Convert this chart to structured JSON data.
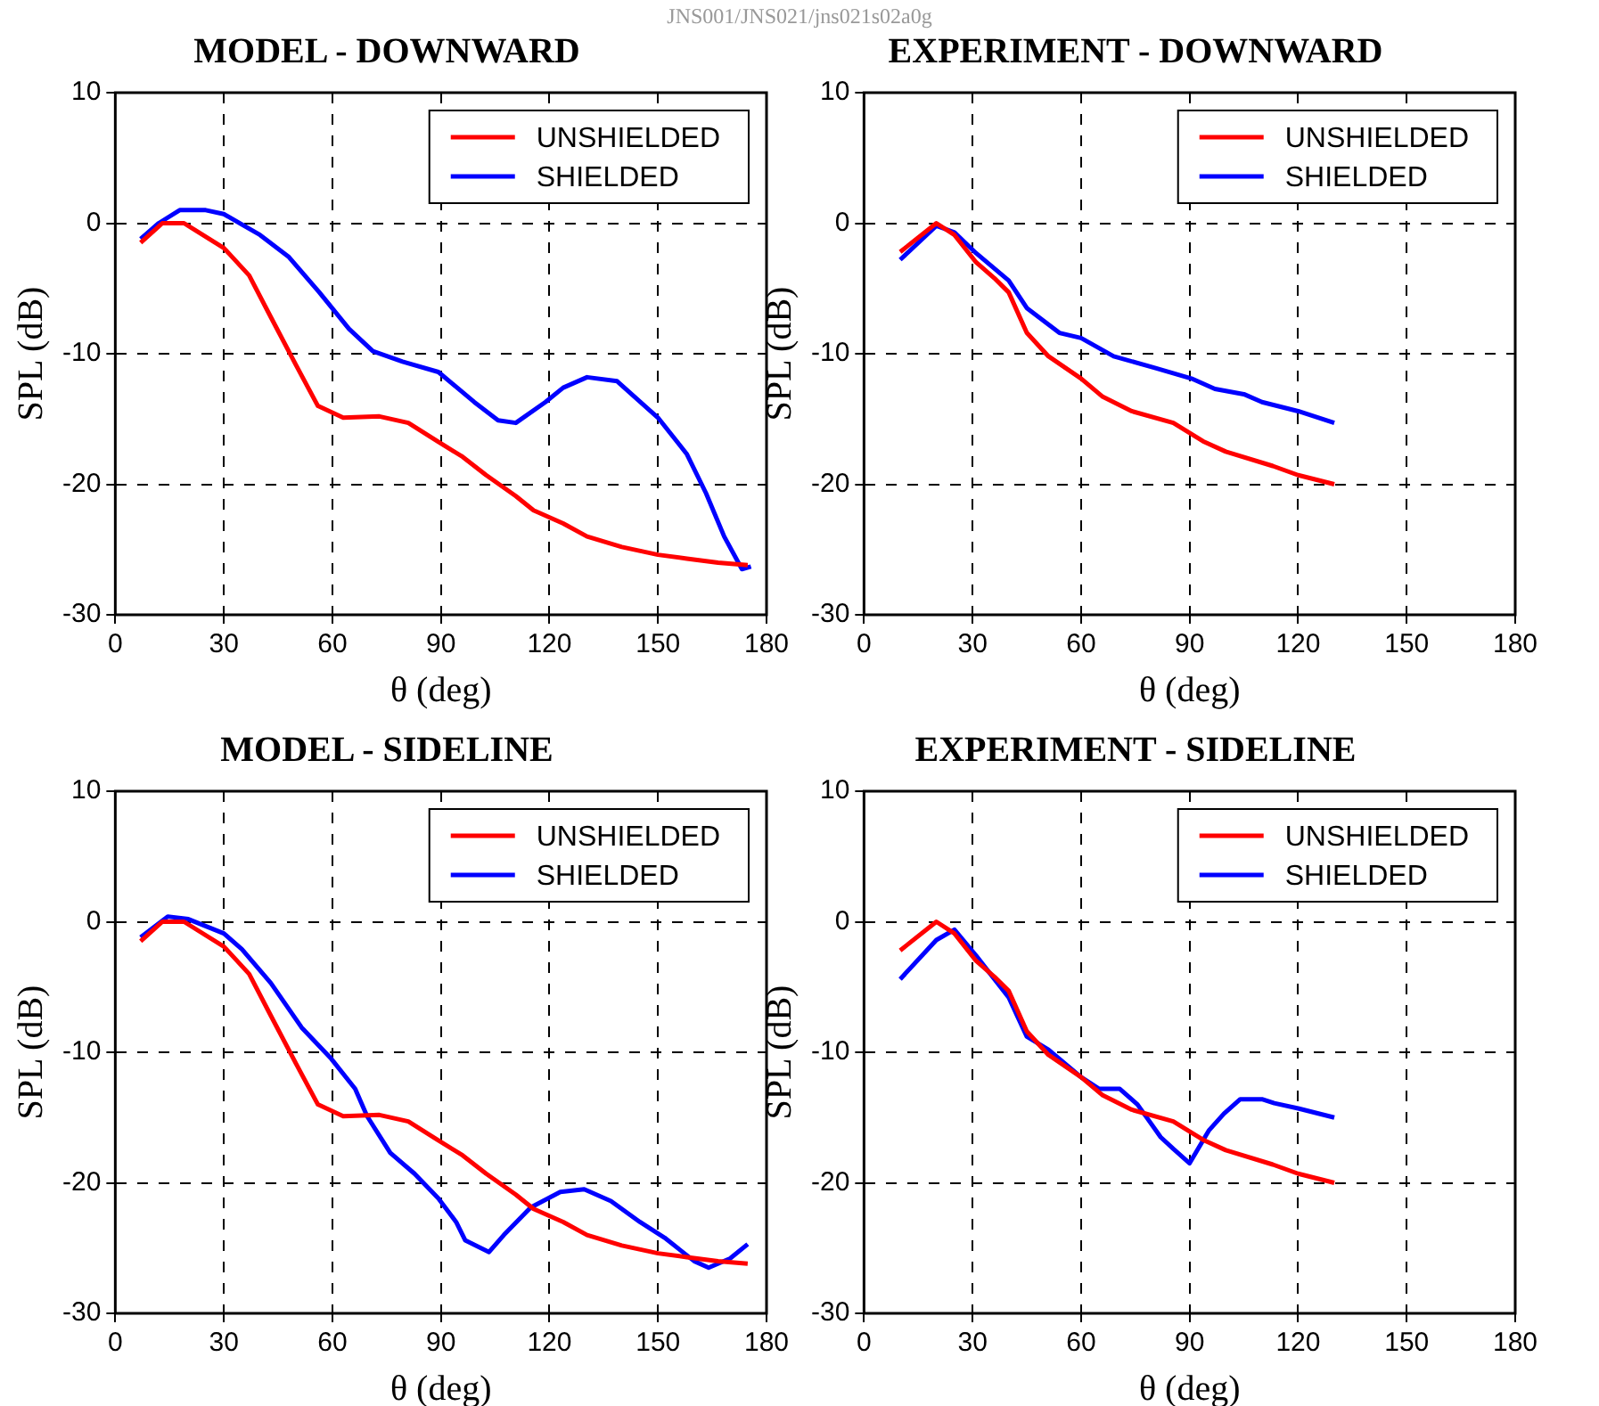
{
  "chart_data": [
    {
      "type": "line",
      "title": "MODEL - DOWNWARD",
      "xlabel": "θ (deg)",
      "ylabel": "SPL (dB)",
      "annotations": [
        "JNS001/JNS021/jns021s02a0g"
      ],
      "xlim": [
        0,
        180
      ],
      "xticks": [
        0,
        30,
        60,
        90,
        120,
        150,
        180
      ],
      "ylim": [
        -30,
        10
      ],
      "yticks": [
        -30,
        -20,
        -10,
        0,
        10
      ],
      "grid": true,
      "legend": "top right",
      "line_style": "solid",
      "marker": "none",
      "series": [
        {
          "name": "UNSHIELDED",
          "color": "#ff0000",
          "x": [
            7,
            13,
            19,
            30,
            37,
            43,
            50,
            56,
            63,
            73,
            81,
            89,
            96,
            102.5,
            110.7,
            115.6,
            123.8,
            130.4,
            140,
            150,
            158,
            166.6,
            174.8
          ],
          "values": [
            -1.5,
            0,
            0,
            -1.9,
            -4,
            -7.2,
            -10.9,
            -14,
            -14.9,
            -14.8,
            -15.3,
            -16.7,
            -17.9,
            -19.3,
            -20.9,
            -22,
            -23,
            -24,
            -24.8,
            -25.4,
            -25.7,
            -26,
            -26.2
          ]
        },
        {
          "name": "SHIELDED",
          "color": "#0000ff",
          "x": [
            7,
            12,
            17.8,
            25,
            30,
            40,
            48,
            56.4,
            64.6,
            71.2,
            79.4,
            89.3,
            99.2,
            105.8,
            110.7,
            118.9,
            123.8,
            130.4,
            138.7,
            150,
            158,
            163.3,
            168.3,
            173.2,
            175.7
          ],
          "values": [
            -1.2,
            0,
            1,
            1,
            0.7,
            -0.9,
            -2.6,
            -5.3,
            -8.1,
            -9.8,
            -10.6,
            -11.4,
            -13.7,
            -15.1,
            -15.3,
            -13.7,
            -12.6,
            -11.8,
            -12.1,
            -14.9,
            -17.7,
            -20.7,
            -24,
            -26.5,
            -26.3
          ]
        }
      ]
    },
    {
      "type": "line",
      "title": "EXPERIMENT - DOWNWARD",
      "xlabel": "θ (deg)",
      "ylabel": "SPL (dB)",
      "xlim": [
        0,
        180
      ],
      "xticks": [
        0,
        30,
        60,
        90,
        120,
        150,
        180
      ],
      "ylim": [
        -30,
        10
      ],
      "yticks": [
        -30,
        -20,
        -10,
        0,
        10
      ],
      "grid": true,
      "legend": "top right",
      "line_style": "solid",
      "marker": "none",
      "series": [
        {
          "name": "UNSHIELDED",
          "color": "#ff0000",
          "x": [
            10,
            20,
            25,
            31,
            36,
            40,
            45,
            51,
            60,
            66,
            74,
            85.5,
            93.7,
            100,
            113,
            120,
            130
          ],
          "values": [
            -2.2,
            0,
            -0.9,
            -3,
            -4.2,
            -5.3,
            -8.4,
            -10.2,
            -11.9,
            -13.3,
            -14.4,
            -15.3,
            -16.7,
            -17.5,
            -18.6,
            -19.3,
            -20
          ]
        },
        {
          "name": "SHIELDED",
          "color": "#0000ff",
          "x": [
            10,
            20,
            25,
            31,
            40,
            45,
            54,
            60,
            69,
            80.6,
            90.5,
            97,
            105,
            110,
            120,
            130
          ],
          "values": [
            -2.8,
            -0.2,
            -0.7,
            -2.3,
            -4.4,
            -6.5,
            -8.4,
            -8.8,
            -10.2,
            -11.1,
            -11.9,
            -12.7,
            -13.1,
            -13.7,
            -14.4,
            -15.3
          ]
        }
      ]
    },
    {
      "type": "line",
      "title": "MODEL - SIDELINE",
      "xlabel": "θ (deg)",
      "ylabel": "SPL (dB)",
      "xlim": [
        0,
        180
      ],
      "xticks": [
        0,
        30,
        60,
        90,
        120,
        150,
        180
      ],
      "ylim": [
        -30,
        10
      ],
      "yticks": [
        -30,
        -20,
        -10,
        0,
        10
      ],
      "grid": true,
      "legend": "top right",
      "line_style": "solid",
      "marker": "none",
      "series": [
        {
          "name": "UNSHIELDED",
          "color": "#ff0000",
          "x": [
            7,
            13,
            19,
            30,
            37,
            43,
            50,
            56,
            63,
            73,
            81,
            89,
            96,
            102.5,
            110.7,
            115.6,
            123.8,
            130.4,
            140,
            150,
            158,
            166.6,
            174.8
          ],
          "values": [
            -1.5,
            0,
            0,
            -1.9,
            -4,
            -7.2,
            -10.9,
            -14,
            -14.9,
            -14.8,
            -15.3,
            -16.7,
            -17.9,
            -19.3,
            -20.9,
            -22,
            -23,
            -24,
            -24.8,
            -25.4,
            -25.7,
            -26,
            -26.2
          ]
        },
        {
          "name": "SHIELDED",
          "color": "#0000ff",
          "x": [
            7,
            14.5,
            20.2,
            30,
            35,
            43,
            51.5,
            59.7,
            66.3,
            69.6,
            76,
            82.7,
            89.3,
            94.2,
            96.7,
            103.3,
            107.4,
            114.8,
            123,
            129.6,
            137,
            145,
            151.8,
            160,
            164,
            169.9,
            174.8
          ],
          "values": [
            -1.2,
            0.4,
            0.2,
            -0.9,
            -2.1,
            -4.7,
            -8.1,
            -10.5,
            -12.8,
            -14.9,
            -17.7,
            -19.3,
            -21.2,
            -23,
            -24.4,
            -25.3,
            -24,
            -21.9,
            -20.7,
            -20.5,
            -21.4,
            -23,
            -24.2,
            -26,
            -26.5,
            -25.8,
            -24.7
          ]
        }
      ]
    },
    {
      "type": "line",
      "title": "EXPERIMENT - SIDELINE",
      "xlabel": "θ (deg)",
      "ylabel": "SPL (dB)",
      "xlim": [
        0,
        180
      ],
      "xticks": [
        0,
        30,
        60,
        90,
        120,
        150,
        180
      ],
      "ylim": [
        -30,
        10
      ],
      "yticks": [
        -30,
        -20,
        -10,
        0,
        10
      ],
      "grid": true,
      "legend": "top right",
      "line_style": "solid",
      "marker": "none",
      "series": [
        {
          "name": "UNSHIELDED",
          "color": "#ff0000",
          "x": [
            10,
            20,
            25,
            31,
            36,
            40,
            45,
            51,
            60,
            66,
            74,
            85.5,
            93.7,
            100,
            113,
            120,
            130
          ],
          "values": [
            -2.2,
            0,
            -0.9,
            -3,
            -4.2,
            -5.3,
            -8.4,
            -10.2,
            -11.9,
            -13.3,
            -14.4,
            -15.3,
            -16.7,
            -17.5,
            -18.6,
            -19.3,
            -20
          ]
        },
        {
          "name": "SHIELDED",
          "color": "#0000ff",
          "x": [
            10,
            20,
            25,
            31,
            40,
            45,
            51,
            60,
            65,
            70.7,
            75.6,
            82,
            85.5,
            90,
            95.3,
            99.5,
            104,
            110,
            113.4,
            120,
            130
          ],
          "values": [
            -4.4,
            -1.4,
            -0.6,
            -2.6,
            -5.8,
            -8.8,
            -9.8,
            -11.9,
            -12.8,
            -12.8,
            -14,
            -16.5,
            -17.4,
            -18.5,
            -16,
            -14.7,
            -13.6,
            -13.6,
            -13.9,
            -14.3,
            -15
          ]
        }
      ]
    }
  ]
}
